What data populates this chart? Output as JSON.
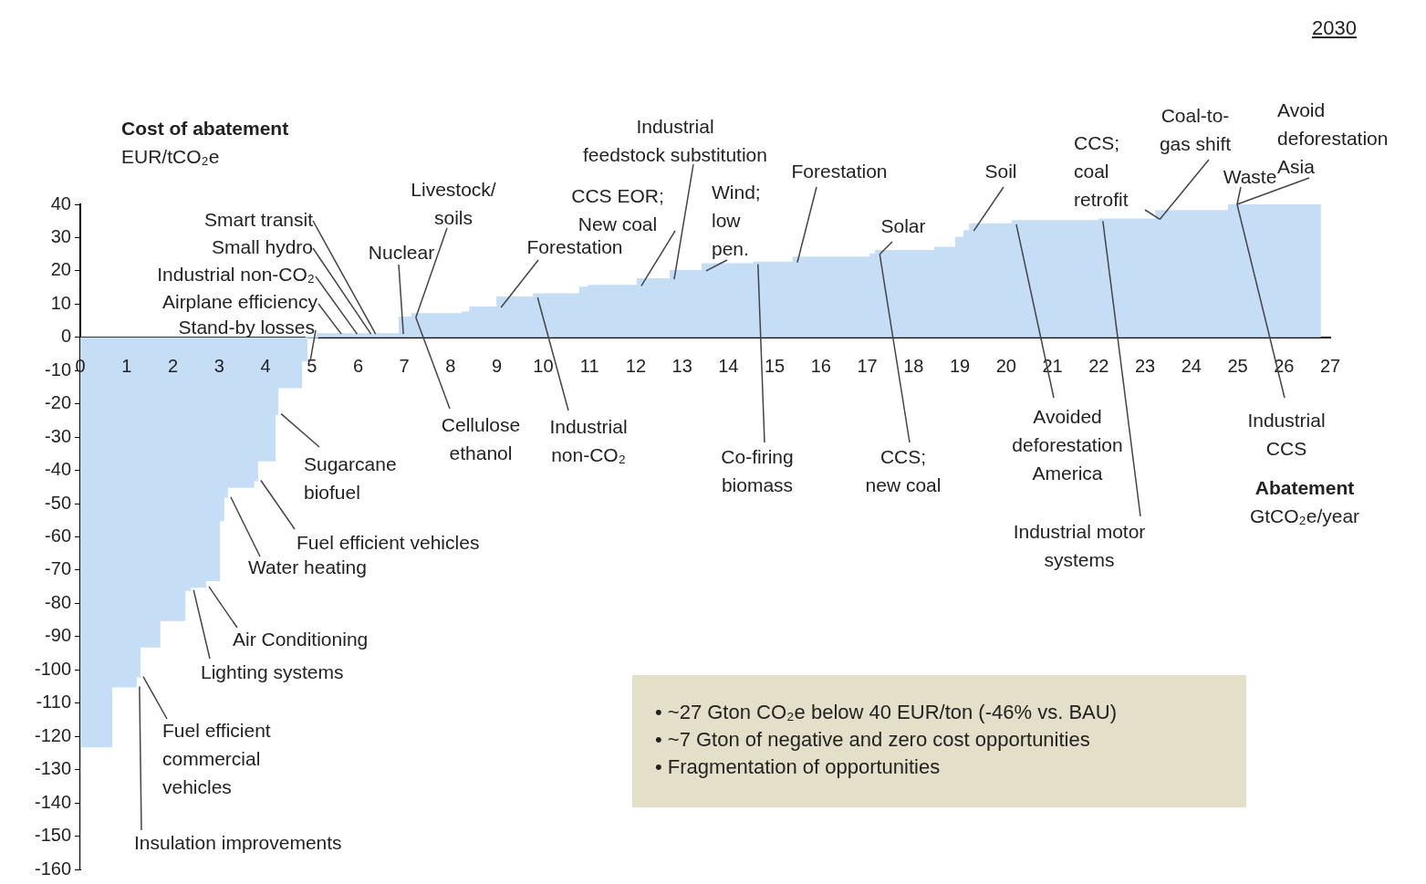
{
  "chart_data": {
    "type": "area",
    "title": "2030",
    "xlabel": "Abatement\nGtCO₂e/year",
    "ylabel": "Cost of abatement\nEUR/tCO₂e",
    "xlim": [
      0,
      27
    ],
    "xticks": [
      0,
      1,
      2,
      3,
      4,
      5,
      6,
      7,
      8,
      9,
      10,
      11,
      12,
      13,
      14,
      15,
      16,
      17,
      18,
      19,
      20,
      21,
      22,
      23,
      24,
      25,
      26,
      27
    ],
    "ylim": [
      -160,
      40
    ],
    "yticks": [
      -160,
      -150,
      -140,
      -130,
      -120,
      -110,
      -100,
      -90,
      -80,
      -70,
      -60,
      -50,
      -40,
      -30,
      -20,
      -10,
      0,
      10,
      20,
      30,
      40
    ],
    "marker": "none",
    "series": [
      {
        "color": "#c6ddf6",
        "x": [
          0,
          0.67,
          1.2,
          1.28,
          1.71,
          2.25,
          2.37,
          2.7,
          3.0,
          3.09,
          3.17,
          3.74,
          3.82,
          4.2,
          4.26,
          4.77,
          4.89,
          5.12,
          5.56,
          5.9,
          6.2,
          6.3,
          6.9,
          7.17,
          8.26,
          8.42,
          9.01,
          9.8,
          10.8,
          10.98,
          12.04,
          12.75,
          13.44,
          14.56,
          15.41,
          17.07,
          17.19,
          18.47,
          18.92,
          19.1,
          19.22,
          20.14,
          22.01,
          23.24,
          24.81,
          24.91,
          26.8
        ],
        "values": [
          -160,
          -123,
          -105,
          -102,
          -93,
          -85,
          -76,
          -75,
          -73,
          -55,
          -48,
          -45,
          -43,
          -37,
          -23,
          -15,
          -7,
          0,
          1,
          1,
          1,
          1,
          1,
          6,
          7,
          7.5,
          9,
          12,
          13,
          15,
          15.5,
          17.5,
          20,
          22,
          22.5,
          24,
          25,
          26,
          27,
          30,
          32,
          34,
          35,
          35.5,
          38,
          40,
          40
        ]
      }
    ],
    "annotations": [
      {
        "text": "Smart transit",
        "x": 6.3,
        "y": 1
      },
      {
        "text": "Small hydro",
        "x": 6.2,
        "y": 1
      },
      {
        "text": "Industrial non-CO₂",
        "x": 5.9,
        "y": 1
      },
      {
        "text": "Airplane efficiency",
        "x": 5.56,
        "y": 1
      },
      {
        "text": "Stand-by losses",
        "x": 4.89,
        "y": -7
      },
      {
        "text": "Nuclear",
        "x": 6.9,
        "y": 1
      },
      {
        "text": "Livestock/\nsoils",
        "x": 7.17,
        "y": 6
      },
      {
        "text": "Forestation",
        "x": 9.01,
        "y": 9
      },
      {
        "text": "CCS EOR;\nNew coal",
        "x": 12.04,
        "y": 15.5
      },
      {
        "text": "Industrial\nfeedstock substitution",
        "x": 12.75,
        "y": 17.5
      },
      {
        "text": "Wind;\nlow\npen.",
        "x": 13.44,
        "y": 20
      },
      {
        "text": "Forestation",
        "x": 15.41,
        "y": 22.5
      },
      {
        "text": "Solar",
        "x": 17.19,
        "y": 25
      },
      {
        "text": "Soil",
        "x": 19.22,
        "y": 32
      },
      {
        "text": "CCS;\ncoal\nretrofit",
        "x": 23.24,
        "y": 35.5
      },
      {
        "text": "Coal-to-\ngas shift",
        "x": 23.24,
        "y": 35.5
      },
      {
        "text": "Waste",
        "x": 24.91,
        "y": 40
      },
      {
        "text": "Avoid\ndeforestation\nAsia",
        "x": 24.91,
        "y": 40
      },
      {
        "text": "Cellulose\nethanol",
        "x": 7.17,
        "y": 6
      },
      {
        "text": "Industrial\nnon-CO₂",
        "x": 9.8,
        "y": 12
      },
      {
        "text": "Co-firing\nbiomass",
        "x": 14.56,
        "y": 22
      },
      {
        "text": "CCS;\nnew coal",
        "x": 17.19,
        "y": 25
      },
      {
        "text": "Avoided\ndeforestation\nAmerica",
        "x": 20.14,
        "y": 34
      },
      {
        "text": "Industrial motor\nsystems",
        "x": 22.01,
        "y": 35
      },
      {
        "text": "Industrial\nCCS",
        "x": 24.91,
        "y": 40
      },
      {
        "text": "Sugarcane\nbiofuel",
        "x": 4.26,
        "y": -23
      },
      {
        "text": "Fuel efficient vehicles",
        "x": 3.82,
        "y": -43
      },
      {
        "text": "Water heating",
        "x": 3.17,
        "y": -48
      },
      {
        "text": "Air Conditioning",
        "x": 2.7,
        "y": -75
      },
      {
        "text": "Lighting systems",
        "x": 2.37,
        "y": -76
      },
      {
        "text": "Fuel efficient\ncommercial\nvehicles",
        "x": 1.28,
        "y": -102
      },
      {
        "text": "Insulation improvements",
        "x": 1.2,
        "y": -105
      },
      "• ~27 Gton CO₂e below 40 EUR/ton (-46% vs. BAU)",
      "• ~7 Gton of negative and zero cost opportunities",
      "• Fragmentation of opportunities"
    ]
  }
}
